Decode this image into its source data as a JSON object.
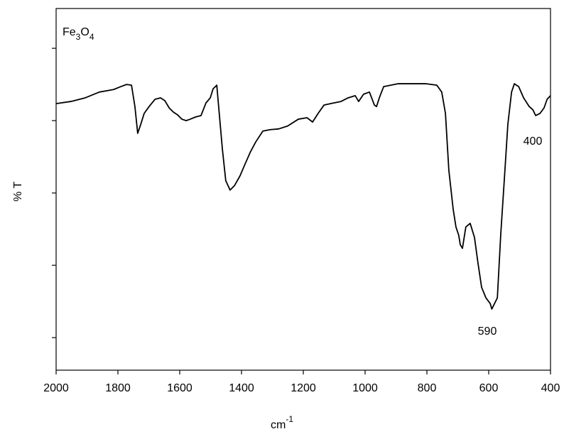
{
  "chart_data": {
    "type": "line",
    "title": [
      "Fe",
      "3",
      "O",
      "4"
    ],
    "x_label": {
      "base": "cm",
      "superscript": "-1"
    },
    "y_label": "% T",
    "annotations": [
      "590",
      "400"
    ],
    "color": "#000000",
    "x": [
      2000,
      1952,
      1906,
      1860,
      1814,
      1791,
      1772,
      1756,
      1745,
      1736,
      1726,
      1715,
      1699,
      1680,
      1662,
      1648,
      1634,
      1621,
      1607,
      1593,
      1579,
      1566,
      1549,
      1531,
      1515,
      1501,
      1492,
      1480,
      1474,
      1462,
      1451,
      1437,
      1423,
      1405,
      1389,
      1372,
      1354,
      1331,
      1308,
      1280,
      1251,
      1216,
      1188,
      1170,
      1152,
      1133,
      1101,
      1078,
      1055,
      1032,
      1021,
      1005,
      986,
      970,
      963,
      954,
      940,
      894,
      848,
      802,
      768,
      752,
      740,
      729,
      715,
      706,
      697,
      692,
      685,
      674,
      660,
      646,
      635,
      623,
      609,
      595,
      590,
      572,
      561,
      549,
      538,
      526,
      517,
      503,
      487,
      469,
      457,
      448,
      434,
      421,
      411,
      400
    ],
    "values": [
      64.7,
      65.3,
      66.3,
      67.9,
      68.6,
      69.4,
      70.0,
      69.8,
      63.9,
      56.5,
      59.0,
      62.0,
      63.9,
      65.9,
      66.3,
      65.5,
      63.5,
      62.4,
      61.6,
      60.4,
      60.0,
      60.4,
      61.0,
      61.4,
      64.9,
      66.3,
      68.8,
      69.8,
      63.9,
      52.2,
      43.4,
      40.8,
      42.0,
      44.7,
      47.9,
      51.2,
      54.1,
      57.1,
      57.5,
      57.7,
      58.5,
      60.4,
      60.8,
      59.6,
      62.0,
      64.3,
      64.9,
      65.3,
      66.3,
      66.9,
      65.3,
      67.3,
      67.9,
      64.3,
      63.9,
      66.3,
      69.4,
      70.2,
      70.2,
      70.2,
      69.8,
      67.9,
      62.0,
      46.3,
      35.5,
      30.6,
      28.3,
      25.7,
      24.7,
      30.6,
      31.6,
      27.7,
      20.8,
      13.9,
      11.0,
      9.4,
      7.9,
      11.0,
      28.6,
      44.3,
      59.0,
      67.9,
      70.2,
      69.4,
      66.3,
      63.9,
      63.0,
      61.4,
      62.0,
      63.5,
      65.9,
      66.9
    ],
    "xlim": [
      2000,
      400
    ],
    "xticks": [
      2000,
      1800,
      1600,
      1400,
      1200,
      1000,
      800,
      600,
      400
    ],
    "ylim": [
      -9,
      91
    ],
    "yticks": [
      0,
      20,
      40,
      60,
      80
    ]
  }
}
